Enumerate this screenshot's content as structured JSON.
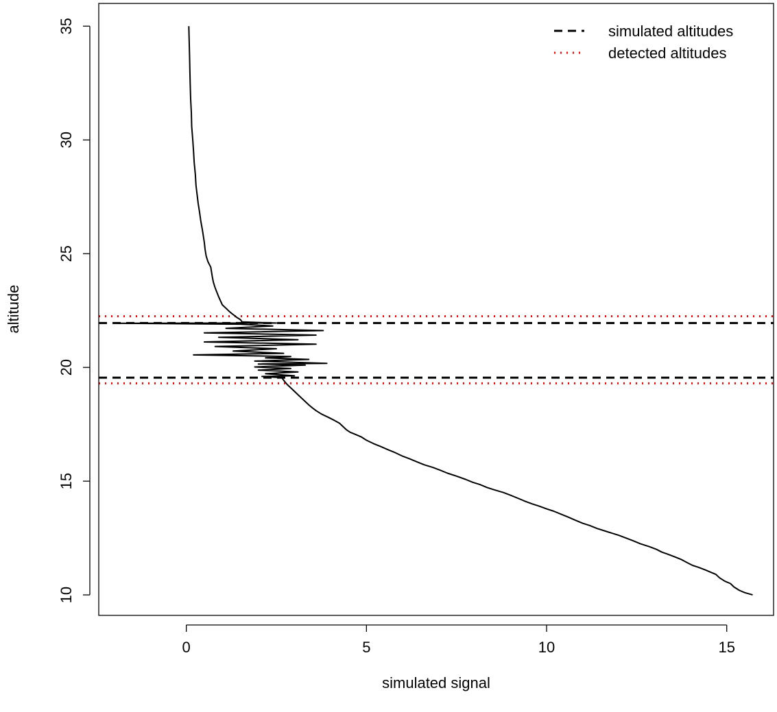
{
  "chart_data": {
    "type": "line",
    "title": "",
    "xlabel": "simulated signal",
    "ylabel": "altitude",
    "xlim": [
      -2.43,
      16.3
    ],
    "ylim": [
      9.1,
      36.0
    ],
    "x_ticks": [
      0,
      5,
      10,
      15
    ],
    "y_ticks": [
      10,
      15,
      20,
      25,
      30,
      35
    ],
    "x_tick_labels": [
      "0",
      "5",
      "10",
      "15"
    ],
    "y_tick_labels": [
      "10",
      "15",
      "20",
      "25",
      "30",
      "35"
    ],
    "grid": false,
    "legend_position": "top-right",
    "series": [
      {
        "kind": "signal",
        "color": "#000000",
        "points": [
          [
            15.72,
            10.0
          ],
          [
            15.5,
            10.1
          ],
          [
            15.35,
            10.2
          ],
          [
            15.2,
            10.35
          ],
          [
            15.1,
            10.5
          ],
          [
            14.95,
            10.6
          ],
          [
            14.8,
            10.75
          ],
          [
            14.7,
            10.9
          ],
          [
            14.55,
            11.0
          ],
          [
            14.4,
            11.1
          ],
          [
            14.2,
            11.22
          ],
          [
            14.05,
            11.3
          ],
          [
            13.9,
            11.42
          ],
          [
            13.75,
            11.55
          ],
          [
            13.55,
            11.68
          ],
          [
            13.35,
            11.8
          ],
          [
            13.2,
            11.88
          ],
          [
            13.05,
            12.0
          ],
          [
            12.85,
            12.12
          ],
          [
            12.6,
            12.25
          ],
          [
            12.4,
            12.38
          ],
          [
            12.2,
            12.5
          ],
          [
            12.0,
            12.62
          ],
          [
            11.8,
            12.72
          ],
          [
            11.6,
            12.82
          ],
          [
            11.4,
            12.92
          ],
          [
            11.2,
            13.05
          ],
          [
            11.0,
            13.15
          ],
          [
            10.8,
            13.28
          ],
          [
            10.6,
            13.42
          ],
          [
            10.4,
            13.55
          ],
          [
            10.2,
            13.68
          ],
          [
            10.0,
            13.78
          ],
          [
            9.8,
            13.9
          ],
          [
            9.6,
            14.0
          ],
          [
            9.4,
            14.12
          ],
          [
            9.2,
            14.25
          ],
          [
            9.0,
            14.38
          ],
          [
            8.8,
            14.5
          ],
          [
            8.55,
            14.62
          ],
          [
            8.35,
            14.72
          ],
          [
            8.15,
            14.85
          ],
          [
            7.95,
            14.95
          ],
          [
            7.75,
            15.08
          ],
          [
            7.5,
            15.22
          ],
          [
            7.25,
            15.35
          ],
          [
            7.05,
            15.48
          ],
          [
            6.85,
            15.6
          ],
          [
            6.6,
            15.72
          ],
          [
            6.4,
            15.85
          ],
          [
            6.2,
            15.98
          ],
          [
            6.0,
            16.1
          ],
          [
            5.8,
            16.25
          ],
          [
            5.6,
            16.38
          ],
          [
            5.4,
            16.52
          ],
          [
            5.2,
            16.65
          ],
          [
            5.0,
            16.8
          ],
          [
            4.85,
            16.95
          ],
          [
            4.7,
            17.05
          ],
          [
            4.55,
            17.15
          ],
          [
            4.45,
            17.25
          ],
          [
            4.35,
            17.4
          ],
          [
            4.25,
            17.55
          ],
          [
            4.1,
            17.68
          ],
          [
            3.95,
            17.8
          ],
          [
            3.75,
            17.95
          ],
          [
            3.6,
            18.1
          ],
          [
            3.5,
            18.22
          ],
          [
            3.4,
            18.35
          ],
          [
            3.3,
            18.5
          ],
          [
            3.2,
            18.65
          ],
          [
            3.1,
            18.8
          ],
          [
            3.0,
            18.95
          ],
          [
            2.9,
            19.1
          ],
          [
            2.8,
            19.25
          ],
          [
            2.72,
            19.4
          ],
          [
            2.65,
            19.55
          ],
          [
            2.1,
            19.6
          ],
          [
            3.0,
            19.63
          ],
          [
            2.2,
            19.72
          ],
          [
            3.1,
            19.8
          ],
          [
            2.0,
            19.88
          ],
          [
            2.9,
            19.95
          ],
          [
            1.9,
            20.02
          ],
          [
            3.3,
            20.1
          ],
          [
            2.0,
            20.15
          ],
          [
            3.9,
            20.18
          ],
          [
            1.9,
            20.28
          ],
          [
            3.4,
            20.35
          ],
          [
            2.2,
            20.42
          ],
          [
            2.9,
            20.48
          ],
          [
            0.2,
            20.55
          ],
          [
            2.7,
            20.62
          ],
          [
            1.3,
            20.72
          ],
          [
            2.5,
            20.82
          ],
          [
            0.8,
            20.92
          ],
          [
            3.6,
            21.02
          ],
          [
            0.5,
            21.12
          ],
          [
            3.1,
            21.22
          ],
          [
            0.9,
            21.32
          ],
          [
            3.6,
            21.42
          ],
          [
            0.5,
            21.52
          ],
          [
            3.8,
            21.62
          ],
          [
            1.1,
            21.72
          ],
          [
            2.4,
            21.82
          ],
          [
            1.5,
            21.9
          ],
          [
            -1.9,
            21.94
          ],
          [
            2.5,
            21.95
          ],
          [
            1.55,
            22.0
          ],
          [
            1.5,
            22.1
          ],
          [
            1.4,
            22.2
          ],
          [
            1.3,
            22.32
          ],
          [
            1.2,
            22.45
          ],
          [
            1.1,
            22.6
          ],
          [
            1.0,
            22.75
          ],
          [
            0.95,
            22.92
          ],
          [
            0.9,
            23.1
          ],
          [
            0.85,
            23.3
          ],
          [
            0.8,
            23.5
          ],
          [
            0.75,
            23.75
          ],
          [
            0.72,
            24.0
          ],
          [
            0.7,
            24.2
          ],
          [
            0.68,
            24.4
          ],
          [
            0.6,
            24.65
          ],
          [
            0.55,
            24.9
          ],
          [
            0.52,
            25.2
          ],
          [
            0.5,
            25.5
          ],
          [
            0.47,
            25.8
          ],
          [
            0.44,
            26.1
          ],
          [
            0.4,
            26.45
          ],
          [
            0.37,
            26.8
          ],
          [
            0.33,
            27.2
          ],
          [
            0.3,
            27.6
          ],
          [
            0.27,
            28.0
          ],
          [
            0.25,
            28.5
          ],
          [
            0.22,
            29.0
          ],
          [
            0.2,
            29.5
          ],
          [
            0.18,
            30.0
          ],
          [
            0.15,
            30.6
          ],
          [
            0.14,
            31.2
          ],
          [
            0.12,
            31.8
          ],
          [
            0.11,
            32.4
          ],
          [
            0.1,
            33.0
          ],
          [
            0.09,
            33.7
          ],
          [
            0.08,
            34.3
          ],
          [
            0.07,
            35.0
          ]
        ]
      }
    ],
    "hlines": [
      {
        "kind": "simulated",
        "y": 21.95,
        "color": "#000000",
        "style": "dashed"
      },
      {
        "kind": "simulated",
        "y": 19.55,
        "color": "#000000",
        "style": "dashed"
      },
      {
        "kind": "detected",
        "y": 22.25,
        "color": "#ff0000",
        "style": "dotted"
      },
      {
        "kind": "detected",
        "y": 19.3,
        "color": "#ff0000",
        "style": "dotted"
      }
    ],
    "legend": [
      {
        "label": "simulated altitudes",
        "color": "#000000",
        "style": "dashed"
      },
      {
        "label": "detected altitudes",
        "color": "#ff0000",
        "style": "dotted"
      }
    ]
  }
}
